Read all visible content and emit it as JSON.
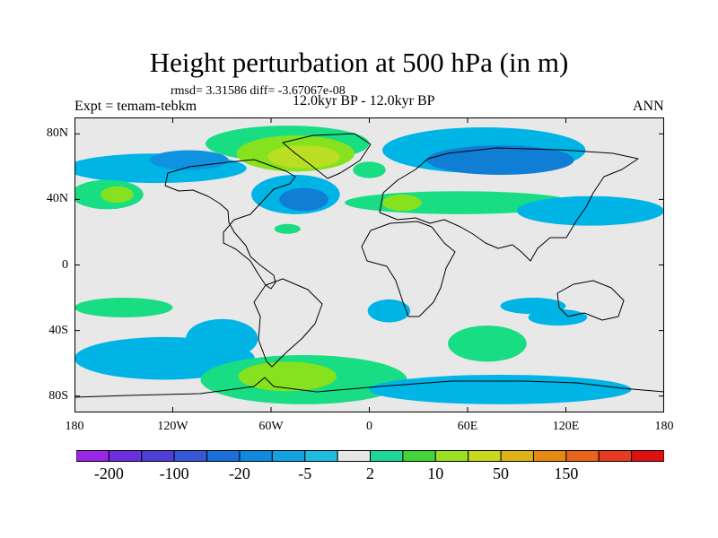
{
  "title": "Height perturbation at 500 hPa (in m)",
  "stats": "rmsd= 3.31586 diff= -3.67067e-08",
  "left_label": "Expt = temam-tebkm",
  "center_label": "12.0kyr BP - 12.0kyr BP",
  "right_label": "ANN",
  "map": {
    "lon_range": [
      -180,
      180
    ],
    "lat_range": [
      -90,
      90
    ],
    "lon_ticks": [
      {
        "lon": -180,
        "label": "180"
      },
      {
        "lon": -120,
        "label": "120W"
      },
      {
        "lon": -60,
        "label": "60W"
      },
      {
        "lon": 0,
        "label": "0"
      },
      {
        "lon": 60,
        "label": "60E"
      },
      {
        "lon": 120,
        "label": "120E"
      },
      {
        "lon": 180,
        "label": "180"
      }
    ],
    "lat_ticks": [
      {
        "lat": 80,
        "label": "80N"
      },
      {
        "lat": 40,
        "label": "40N"
      },
      {
        "lat": 0,
        "label": "0"
      },
      {
        "lat": -40,
        "label": "40S"
      },
      {
        "lat": -80,
        "label": "80S"
      }
    ],
    "background_color": "#e8e8e8",
    "coastline_color": "#000000",
    "anomalies": [
      {
        "name": "greenland-positive",
        "lon": -50,
        "lat": 74,
        "rlon": 50,
        "rlat": 11,
        "color": "#19dd82"
      },
      {
        "name": "greenland-core",
        "lon": -45,
        "lat": 68,
        "rlon": 36,
        "rlat": 11,
        "color": "#86e21e"
      },
      {
        "name": "greenland-center",
        "lon": -40,
        "lat": 66,
        "rlon": 22,
        "rlat": 7,
        "color": "#b9de22"
      },
      {
        "name": "arctic-siberia-negative",
        "lon": 70,
        "lat": 70,
        "rlon": 62,
        "rlat": 14,
        "color": "#00b4e6"
      },
      {
        "name": "siberia-negative-core",
        "lon": 80,
        "lat": 64,
        "rlon": 45,
        "rlat": 9,
        "color": "#117ed6"
      },
      {
        "name": "n-pacific-negative",
        "lon": -130,
        "lat": 59,
        "rlon": 55,
        "rlat": 9,
        "color": "#00b4e6"
      },
      {
        "name": "alaska-negative",
        "lon": -110,
        "lat": 64,
        "rlon": 24,
        "rlat": 6,
        "color": "#0d93e0"
      },
      {
        "name": "n-atlantic-negative",
        "lon": -45,
        "lat": 43,
        "rlon": 27,
        "rlat": 12,
        "color": "#00b4e6"
      },
      {
        "name": "n-atlantic-core",
        "lon": -40,
        "lat": 40,
        "rlon": 15,
        "rlat": 7,
        "color": "#117ed6"
      },
      {
        "name": "n-pacific-positive",
        "lon": -160,
        "lat": 43,
        "rlon": 22,
        "rlat": 9,
        "color": "#19dd82"
      },
      {
        "name": "n-pacific-positive-core",
        "lon": -154,
        "lat": 43,
        "rlon": 10,
        "rlat": 5,
        "color": "#86e21e"
      },
      {
        "name": "eurasia-positive-belt",
        "lon": 55,
        "lat": 38,
        "rlon": 70,
        "rlat": 7,
        "color": "#19dd82"
      },
      {
        "name": "mediterranean-positive",
        "lon": 20,
        "lat": 38,
        "rlon": 12,
        "rlat": 5,
        "color": "#86e21e"
      },
      {
        "name": "n-atlantic-east-positive",
        "lon": 0,
        "lat": 58,
        "rlon": 10,
        "rlat": 5,
        "color": "#19dd82"
      },
      {
        "name": "west-pacific-negative",
        "lon": 135,
        "lat": 33,
        "rlon": 45,
        "rlat": 9,
        "color": "#00b4e6"
      },
      {
        "name": "atlantic-positive-blob",
        "lon": -50,
        "lat": 22,
        "rlon": 8,
        "rlat": 3,
        "color": "#19dd82"
      },
      {
        "name": "s-pacific-positive",
        "lon": -150,
        "lat": -26,
        "rlon": 30,
        "rlat": 6,
        "color": "#19dd82"
      },
      {
        "name": "s-pacific-negative",
        "lon": -125,
        "lat": -57,
        "rlon": 55,
        "rlat": 13,
        "color": "#00b4e6"
      },
      {
        "name": "s-pacific-negative-tail",
        "lon": -90,
        "lat": -45,
        "rlon": 22,
        "rlat": 12,
        "color": "#00b4e6"
      },
      {
        "name": "s-atlantic-positive",
        "lon": -40,
        "lat": -70,
        "rlon": 63,
        "rlat": 15,
        "color": "#19dd82"
      },
      {
        "name": "s-atlantic-core",
        "lon": -50,
        "lat": -68,
        "rlon": 30,
        "rlat": 9,
        "color": "#86e21e"
      },
      {
        "name": "s-atlantic-negative",
        "lon": 12,
        "lat": -28,
        "rlon": 13,
        "rlat": 7,
        "color": "#00b4e6"
      },
      {
        "name": "indian-ocean-positive",
        "lon": 72,
        "lat": -48,
        "rlon": 24,
        "rlat": 11,
        "color": "#19dd82"
      },
      {
        "name": "indian-ocean-negative",
        "lon": 100,
        "lat": -25,
        "rlon": 20,
        "rlat": 5,
        "color": "#00b4e6"
      },
      {
        "name": "australia-west-negative",
        "lon": 115,
        "lat": -32,
        "rlon": 18,
        "rlat": 5,
        "color": "#00b4e6"
      },
      {
        "name": "antarctic-negative",
        "lon": 80,
        "lat": -76,
        "rlon": 80,
        "rlat": 9,
        "color": "#00b4e6"
      }
    ]
  },
  "colorbar": {
    "colors": [
      "#9a26e6",
      "#6b2fe0",
      "#4d3fd8",
      "#3657d8",
      "#1a6fdc",
      "#1089e0",
      "#12a2e0",
      "#1ebde0",
      "#e6e6e6",
      "#1ed89a",
      "#43d43a",
      "#9be01e",
      "#c9d81a",
      "#dcb214",
      "#e48a12",
      "#e8641a",
      "#e83a20",
      "#e01010"
    ],
    "labels": [
      {
        "index": 1,
        "text": "-200"
      },
      {
        "index": 3,
        "text": "-100"
      },
      {
        "index": 5,
        "text": "-20"
      },
      {
        "index": 7,
        "text": "-5"
      },
      {
        "index": 9,
        "text": "2"
      },
      {
        "index": 11,
        "text": "10"
      },
      {
        "index": 13,
        "text": "50"
      },
      {
        "index": 15,
        "text": "150"
      }
    ]
  }
}
